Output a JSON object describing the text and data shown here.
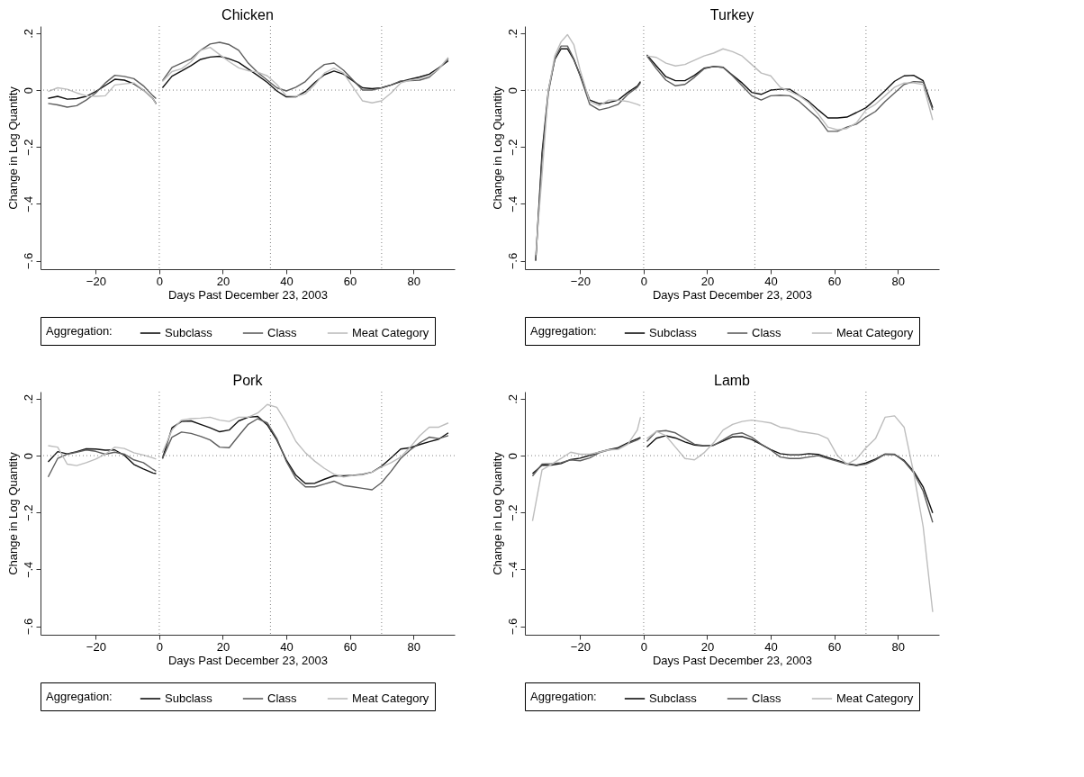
{
  "chart_data": [
    {
      "type": "line",
      "title": "Chicken",
      "xlabel": "Days Past December 23, 2003",
      "ylabel": "Change in Log Quantity",
      "legend_title": "Aggregation:",
      "legend": "bottom",
      "grid": false,
      "x": [
        -35,
        -32,
        -29,
        -26,
        -23,
        -20,
        -17,
        -14,
        -11,
        -8,
        -5,
        -2,
        -1,
        0,
        1,
        4,
        7,
        10,
        13,
        16,
        19,
        22,
        25,
        28,
        31,
        34,
        37,
        40,
        43,
        46,
        49,
        52,
        55,
        58,
        61,
        64,
        67,
        70,
        73,
        76,
        79,
        82,
        85,
        88,
        91
      ],
      "series": [
        {
          "name": "Subclass",
          "color": "#111111",
          "values": [
            -0.029,
            -0.022,
            -0.032,
            -0.03,
            -0.022,
            -0.005,
            0.016,
            0.038,
            0.035,
            0.022,
            0,
            -0.03,
            -0.048,
            null,
            0.008,
            0.049,
            0.067,
            0.086,
            0.108,
            0.116,
            0.119,
            0.11,
            0.097,
            0.074,
            0.051,
            0.027,
            -0.003,
            -0.024,
            -0.024,
            -0.005,
            0.027,
            0.054,
            0.067,
            0.056,
            0.032,
            0.008,
            0.005,
            0.008,
            0.018,
            0.03,
            0.038,
            0.046,
            0.056,
            0.078,
            0.103
          ]
        },
        {
          "name": "Class",
          "color": "#5e5e5e",
          "values": [
            -0.047,
            -0.052,
            -0.06,
            -0.055,
            -0.035,
            -0.01,
            0.025,
            0.052,
            0.048,
            0.04,
            0.015,
            -0.02,
            -0.03,
            null,
            0.033,
            0.08,
            0.095,
            0.11,
            0.14,
            0.162,
            0.168,
            0.16,
            0.14,
            0.095,
            0.062,
            0.035,
            0.008,
            -0.003,
            0.01,
            0.03,
            0.065,
            0.09,
            0.095,
            0.07,
            0.035,
            0.0,
            0.0,
            0.008,
            0.018,
            0.032,
            0.033,
            0.035,
            0.045,
            0.075,
            0.11
          ]
        },
        {
          "name": "Meat Category",
          "color": "#bdbdbd",
          "values": [
            -0.005,
            0.008,
            0.003,
            -0.01,
            -0.02,
            -0.022,
            -0.02,
            0.018,
            0.022,
            0.025,
            0.0,
            -0.03,
            -0.05,
            null,
            0.03,
            0.065,
            0.075,
            0.1,
            0.14,
            0.15,
            0.125,
            0.1,
            0.078,
            0.068,
            0.063,
            0.05,
            0.02,
            -0.02,
            -0.022,
            -0.013,
            0.02,
            0.06,
            0.077,
            0.06,
            0.01,
            -0.038,
            -0.045,
            -0.038,
            -0.01,
            0.025,
            0.035,
            0.04,
            0.05,
            0.075,
            0.115
          ]
        }
      ],
      "xlim": [
        -37.4,
        93
      ],
      "ylim": [
        -0.63,
        0.225
      ],
      "xticks": [
        -20,
        0,
        20,
        40,
        60,
        80
      ],
      "yticks": [
        {
          "value": 0.2,
          "label": ".2"
        },
        {
          "value": 0,
          "label": "0"
        },
        {
          "value": -0.2,
          "label": "−.2"
        },
        {
          "value": -0.4,
          "label": "−.4"
        },
        {
          "value": -0.6,
          "label": "−.6"
        }
      ],
      "ref_lines": [
        {
          "axis": "y",
          "value": 0,
          "line_style": "dotted",
          "color": "#808080"
        },
        {
          "axis": "x",
          "value": 0,
          "line_style": "dotted",
          "color": "#808080"
        },
        {
          "axis": "x",
          "value": 35,
          "line_style": "dotted",
          "color": "#808080"
        },
        {
          "axis": "x",
          "value": 70,
          "line_style": "dotted",
          "color": "#808080"
        }
      ]
    },
    {
      "type": "line",
      "title": "Turkey",
      "xlabel": "Days Past December 23, 2003",
      "ylabel": "Change in Log Quantity",
      "legend_title": "Aggregation:",
      "legend": "bottom",
      "grid": false,
      "x": [
        -34,
        -32,
        -30,
        -28,
        -26,
        -24,
        -22,
        -20,
        -17,
        -14,
        -11,
        -8,
        -5,
        -2,
        -1,
        0,
        1,
        4,
        7,
        10,
        13,
        16,
        19,
        22,
        25,
        28,
        31,
        34,
        37,
        40,
        43,
        46,
        49,
        52,
        55,
        58,
        61,
        64,
        67,
        70,
        73,
        76,
        79,
        82,
        85,
        88,
        91
      ],
      "series": [
        {
          "name": "Subclass",
          "color": "#111111",
          "values": [
            -0.6,
            -0.22,
            0,
            0.107,
            0.145,
            0.145,
            0.107,
            0.052,
            -0.035,
            -0.048,
            -0.044,
            -0.035,
            -0.008,
            0.014,
            0.03,
            null,
            0.124,
            0.085,
            0.047,
            0.033,
            0.033,
            0.052,
            0.077,
            0.083,
            0.08,
            0.052,
            0.025,
            -0.008,
            -0.015,
            0,
            0.003,
            0.003,
            -0.019,
            -0.04,
            -0.07,
            -0.098,
            -0.098,
            -0.095,
            -0.079,
            -0.062,
            -0.033,
            -0.002,
            0.031,
            0.05,
            0.052,
            0.033,
            -0.062
          ]
        },
        {
          "name": "Class",
          "color": "#5e5e5e",
          "values": [
            -0.6,
            -0.24,
            -0.01,
            0.11,
            0.155,
            0.155,
            0.11,
            0.05,
            -0.05,
            -0.07,
            -0.062,
            -0.05,
            -0.015,
            0.01,
            0.025,
            null,
            0.12,
            0.075,
            0.035,
            0.015,
            0.02,
            0.045,
            0.075,
            0.083,
            0.08,
            0.05,
            0.015,
            -0.02,
            -0.035,
            -0.02,
            -0.018,
            -0.02,
            -0.04,
            -0.07,
            -0.1,
            -0.145,
            -0.145,
            -0.13,
            -0.12,
            -0.095,
            -0.075,
            -0.04,
            -0.01,
            0.02,
            0.03,
            0.028,
            -0.07
          ]
        },
        {
          "name": "Meat Category",
          "color": "#bdbdbd",
          "values": [
            -0.58,
            -0.3,
            0.0,
            0.12,
            0.17,
            0.195,
            0.16,
            0.07,
            -0.04,
            -0.055,
            -0.035,
            -0.035,
            -0.04,
            -0.05,
            -0.055,
            null,
            0.12,
            0.115,
            0.095,
            0.085,
            0.09,
            0.105,
            0.12,
            0.13,
            0.145,
            0.135,
            0.12,
            0.09,
            0.06,
            0.05,
            0.01,
            -0.005,
            -0.02,
            -0.045,
            -0.085,
            -0.13,
            -0.14,
            -0.135,
            -0.115,
            -0.07,
            -0.05,
            -0.02,
            0.01,
            0.025,
            0.025,
            0.02,
            -0.105
          ]
        }
      ],
      "xlim": [
        -37.4,
        93
      ],
      "ylim": [
        -0.63,
        0.225
      ],
      "xticks": [
        -20,
        0,
        20,
        40,
        60,
        80
      ],
      "yticks": [
        {
          "value": 0.2,
          "label": ".2"
        },
        {
          "value": 0,
          "label": "0"
        },
        {
          "value": -0.2,
          "label": "−.2"
        },
        {
          "value": -0.4,
          "label": "−.4"
        },
        {
          "value": -0.6,
          "label": "−.6"
        }
      ],
      "ref_lines": [
        {
          "axis": "y",
          "value": 0,
          "line_style": "dotted",
          "color": "#808080"
        },
        {
          "axis": "x",
          "value": 0,
          "line_style": "dotted",
          "color": "#808080"
        },
        {
          "axis": "x",
          "value": 35,
          "line_style": "dotted",
          "color": "#808080"
        },
        {
          "axis": "x",
          "value": 70,
          "line_style": "dotted",
          "color": "#808080"
        }
      ]
    },
    {
      "type": "line",
      "title": "Pork",
      "xlabel": "Days Past December 23, 2003",
      "ylabel": "Change in Log Quantity",
      "legend_title": "Aggregation:",
      "legend": "bottom",
      "grid": false,
      "x": [
        -35,
        -32,
        -29,
        -26,
        -23,
        -20,
        -17,
        -14,
        -11,
        -8,
        -5,
        -2,
        -1,
        0,
        1,
        4,
        7,
        10,
        13,
        16,
        19,
        22,
        25,
        28,
        31,
        34,
        37,
        40,
        43,
        46,
        49,
        52,
        55,
        58,
        61,
        64,
        67,
        70,
        73,
        76,
        79,
        82,
        85,
        88,
        91
      ],
      "series": [
        {
          "name": "Subclass",
          "color": "#111111",
          "values": [
            -0.022,
            0.014,
            0.006,
            0.014,
            0.024,
            0.023,
            0.019,
            0.02,
            0.001,
            -0.031,
            -0.047,
            -0.061,
            -0.063,
            null,
            -0.01,
            0.098,
            0.12,
            0.122,
            0.11,
            0.098,
            0.084,
            0.09,
            0.122,
            0.135,
            0.138,
            0.108,
            0.055,
            -0.015,
            -0.069,
            -0.098,
            -0.097,
            -0.083,
            -0.071,
            -0.071,
            -0.069,
            -0.066,
            -0.058,
            -0.037,
            -0.008,
            0.023,
            0.028,
            0.039,
            0.049,
            0.058,
            0.08
          ]
        },
        {
          "name": "Class",
          "color": "#5e5e5e",
          "values": [
            -0.075,
            -0.01,
            0.005,
            0.012,
            0.02,
            0.015,
            0.005,
            0.012,
            0.005,
            -0.015,
            -0.025,
            -0.048,
            -0.055,
            null,
            -0.01,
            0.065,
            0.083,
            0.078,
            0.068,
            0.055,
            0.03,
            0.028,
            0.07,
            0.11,
            0.13,
            0.115,
            0.06,
            -0.02,
            -0.08,
            -0.11,
            -0.11,
            -0.1,
            -0.09,
            -0.105,
            -0.11,
            -0.115,
            -0.12,
            -0.095,
            -0.055,
            -0.01,
            0.02,
            0.045,
            0.065,
            0.06,
            0.07
          ]
        },
        {
          "name": "Meat Category",
          "color": "#bdbdbd",
          "values": [
            0.035,
            0.03,
            -0.03,
            -0.035,
            -0.025,
            -0.012,
            0.005,
            0.03,
            0.025,
            0.01,
            0.002,
            -0.008,
            -0.012,
            null,
            0.01,
            0.09,
            0.125,
            0.13,
            0.132,
            0.135,
            0.125,
            0.12,
            0.135,
            0.135,
            0.15,
            0.18,
            0.17,
            0.115,
            0.05,
            0.01,
            -0.02,
            -0.045,
            -0.065,
            -0.075,
            -0.07,
            -0.068,
            -0.058,
            -0.04,
            -0.025,
            -0.005,
            0.03,
            0.07,
            0.1,
            0.1,
            0.115
          ]
        }
      ],
      "xlim": [
        -37.4,
        93
      ],
      "ylim": [
        -0.63,
        0.225
      ],
      "xticks": [
        -20,
        0,
        20,
        40,
        60,
        80
      ],
      "yticks": [
        {
          "value": 0.2,
          "label": ".2"
        },
        {
          "value": 0,
          "label": "0"
        },
        {
          "value": -0.2,
          "label": "−.2"
        },
        {
          "value": -0.4,
          "label": "−.4"
        },
        {
          "value": -0.6,
          "label": "−.6"
        }
      ],
      "ref_lines": [
        {
          "axis": "y",
          "value": 0,
          "line_style": "dotted",
          "color": "#808080"
        },
        {
          "axis": "x",
          "value": 0,
          "line_style": "dotted",
          "color": "#808080"
        },
        {
          "axis": "x",
          "value": 35,
          "line_style": "dotted",
          "color": "#808080"
        },
        {
          "axis": "x",
          "value": 70,
          "line_style": "dotted",
          "color": "#808080"
        }
      ]
    },
    {
      "type": "line",
      "title": "Lamb",
      "xlabel": "Days Past December 23, 2003",
      "ylabel": "Change in Log Quantity",
      "legend_title": "Aggregation:",
      "legend": "bottom",
      "grid": false,
      "x": [
        -35,
        -32,
        -29,
        -26,
        -23,
        -20,
        -17,
        -14,
        -11,
        -8,
        -5,
        -2,
        -1,
        0,
        1,
        4,
        7,
        10,
        13,
        16,
        19,
        22,
        25,
        28,
        31,
        34,
        37,
        40,
        43,
        46,
        49,
        52,
        55,
        58,
        61,
        64,
        67,
        70,
        73,
        76,
        79,
        82,
        85,
        88,
        91
      ],
      "series": [
        {
          "name": "Subclass",
          "color": "#111111",
          "values": [
            -0.063,
            -0.034,
            -0.033,
            -0.028,
            -0.014,
            -0.009,
            0.001,
            0.012,
            0.021,
            0.028,
            0.045,
            0.059,
            0.064,
            null,
            0.03,
            0.061,
            0.07,
            0.062,
            0.048,
            0.037,
            0.034,
            0.037,
            0.051,
            0.066,
            0.067,
            0.057,
            0.039,
            0.021,
            0.007,
            0.003,
            0.003,
            0.007,
            0.004,
            -0.007,
            -0.017,
            -0.028,
            -0.034,
            -0.026,
            -0.012,
            0.005,
            0.004,
            -0.017,
            -0.055,
            -0.11,
            -0.202
          ]
        },
        {
          "name": "Class",
          "color": "#5e5e5e",
          "values": [
            -0.072,
            -0.03,
            -0.028,
            -0.025,
            -0.015,
            -0.018,
            -0.008,
            0.01,
            0.02,
            0.025,
            0.042,
            0.055,
            0.062,
            null,
            0.05,
            0.085,
            0.088,
            0.08,
            0.06,
            0.04,
            0.035,
            0.036,
            0.055,
            0.075,
            0.08,
            0.065,
            0.04,
            0.02,
            -0.005,
            -0.01,
            -0.01,
            -0.005,
            0.0,
            -0.01,
            -0.02,
            -0.03,
            -0.035,
            -0.03,
            -0.015,
            0.005,
            0.005,
            -0.02,
            -0.06,
            -0.125,
            -0.235
          ]
        },
        {
          "name": "Meat Category",
          "color": "#bdbdbd",
          "values": [
            -0.23,
            -0.05,
            -0.03,
            -0.01,
            0.012,
            0.005,
            0.005,
            0.012,
            0.02,
            0.022,
            0.04,
            0.09,
            0.135,
            null,
            0.06,
            0.085,
            0.07,
            0.03,
            -0.01,
            -0.015,
            0.01,
            0.045,
            0.09,
            0.11,
            0.12,
            0.125,
            0.12,
            0.115,
            0.1,
            0.095,
            0.085,
            0.08,
            0.075,
            0.06,
            0.0,
            -0.03,
            -0.012,
            0.028,
            0.06,
            0.135,
            0.14,
            0.1,
            -0.06,
            -0.25,
            -0.55
          ]
        }
      ],
      "xlim": [
        -37.4,
        93
      ],
      "ylim": [
        -0.63,
        0.225
      ],
      "xticks": [
        -20,
        0,
        20,
        40,
        60,
        80
      ],
      "yticks": [
        {
          "value": 0.2,
          "label": ".2"
        },
        {
          "value": 0,
          "label": "0"
        },
        {
          "value": -0.2,
          "label": "−.2"
        },
        {
          "value": -0.4,
          "label": "−.4"
        },
        {
          "value": -0.6,
          "label": "−.6"
        }
      ],
      "ref_lines": [
        {
          "axis": "y",
          "value": 0,
          "line_style": "dotted",
          "color": "#808080"
        },
        {
          "axis": "x",
          "value": 0,
          "line_style": "dotted",
          "color": "#808080"
        },
        {
          "axis": "x",
          "value": 35,
          "line_style": "dotted",
          "color": "#808080"
        },
        {
          "axis": "x",
          "value": 70,
          "line_style": "dotted",
          "color": "#808080"
        }
      ]
    }
  ]
}
